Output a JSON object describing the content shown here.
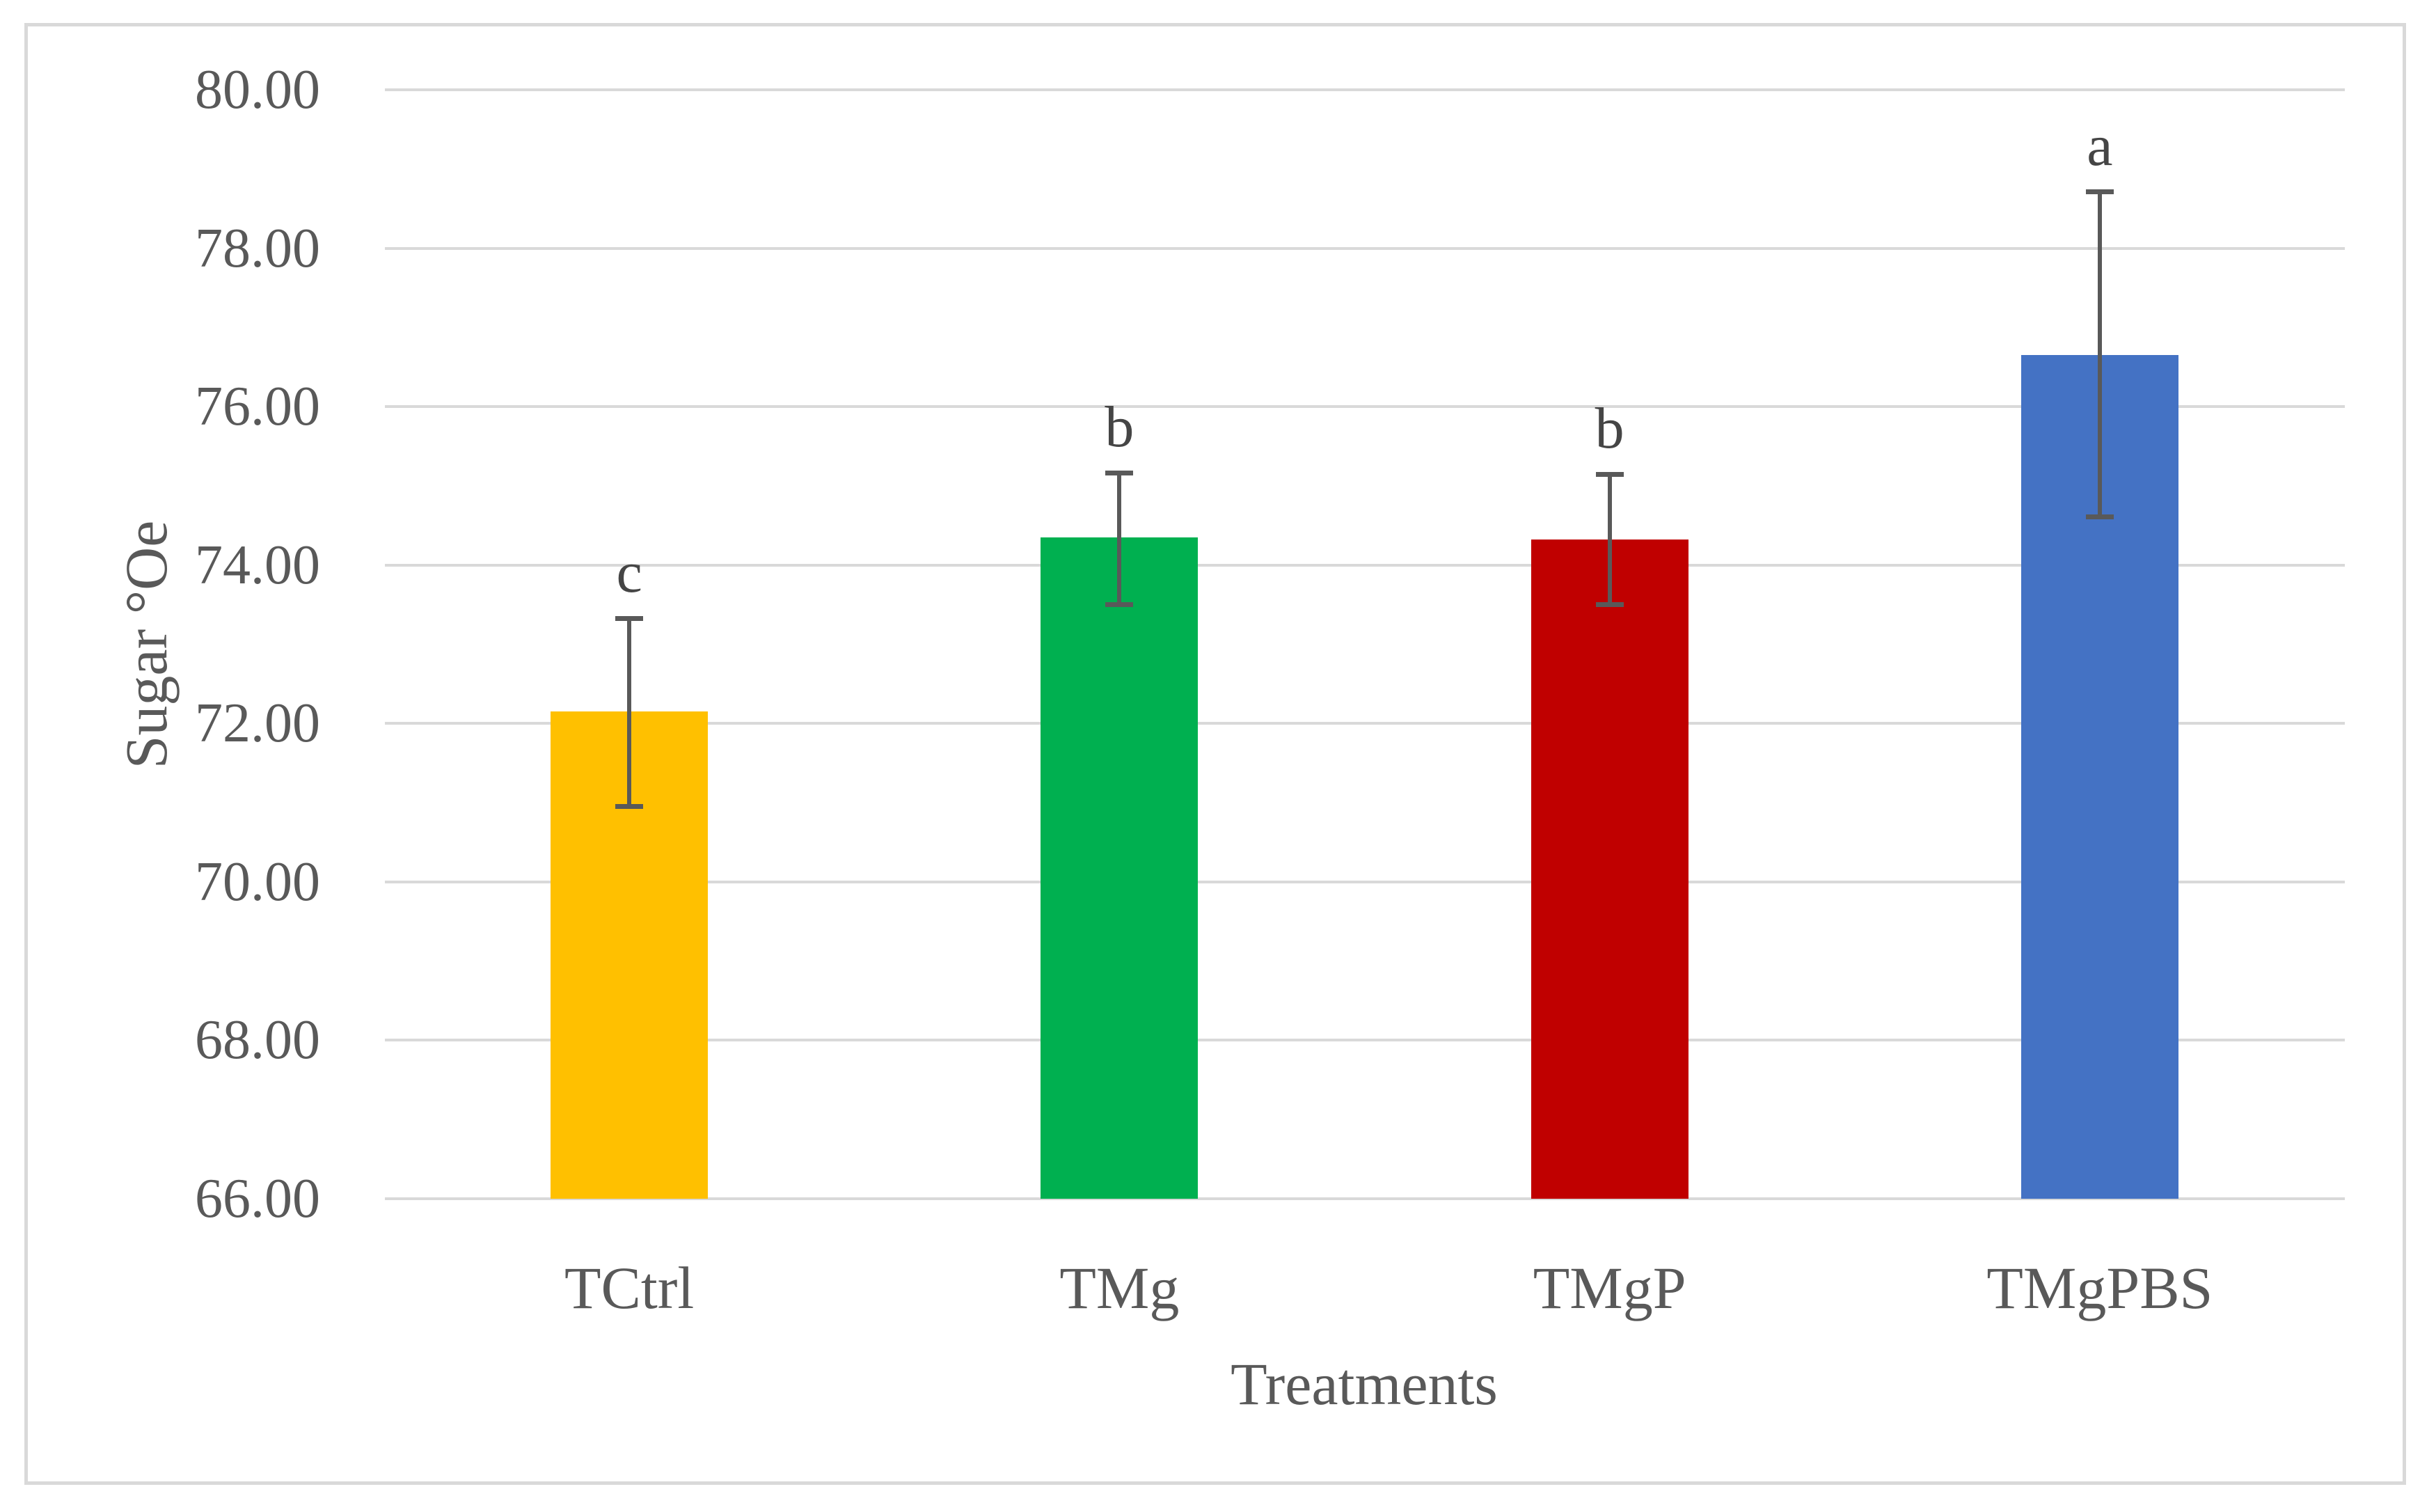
{
  "chart_data": {
    "type": "bar",
    "title": "",
    "xlabel": "Treatments",
    "ylabel": "Sugar °Oe",
    "categories": [
      "TCtrl",
      "TMg",
      "TMgP",
      "TMgPBS"
    ],
    "values": [
      72.15,
      74.35,
      74.32,
      76.65
    ],
    "error_bars": {
      "upper": [
        73.33,
        75.17,
        75.15,
        78.72
      ],
      "lower": [
        70.95,
        73.5,
        73.5,
        74.6
      ]
    },
    "significance_letters": [
      "c",
      "b",
      "b",
      "a"
    ],
    "bar_colors": [
      "#FFC000",
      "#00B050",
      "#C00000",
      "#4472C4"
    ],
    "ylim": [
      66,
      80
    ],
    "ytick_step": 2,
    "ytick_labels": [
      "66.00",
      "68.00",
      "70.00",
      "72.00",
      "74.00",
      "76.00",
      "78.00",
      "80.00"
    ],
    "grid": true,
    "legend": "none",
    "gridline_color": "#D9D9D9",
    "frame_border_color": "#D9D9D9",
    "error_bar_color": "#595959",
    "text_color": "#595959"
  }
}
